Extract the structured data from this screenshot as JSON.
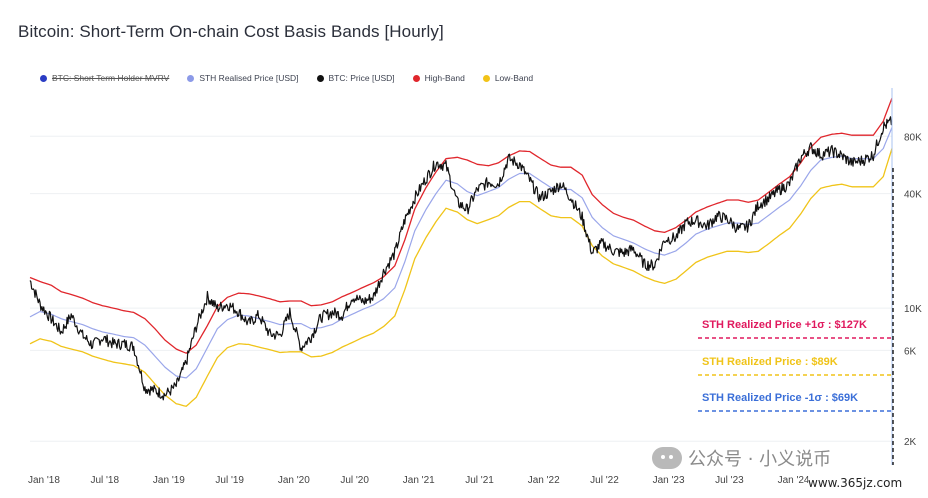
{
  "title": "Bitcoin: Short-Term On-chain Cost Basis Bands [Hourly]",
  "legend": [
    {
      "label": "BTC: Short Term Holder MVRV",
      "color": "#2a3cc4",
      "struck": true
    },
    {
      "label": "STH Realised Price [USD]",
      "color": "#8c9ae8",
      "struck": false
    },
    {
      "label": "BTC: Price [USD]",
      "color": "#111111",
      "struck": false
    },
    {
      "label": "High-Band",
      "color": "#e0262c",
      "struck": false
    },
    {
      "label": "Low-Band",
      "color": "#f2c318",
      "struck": false
    }
  ],
  "colors": {
    "price": "#111111",
    "sth": "#9aa6ea",
    "high": "#e0262c",
    "low": "#f0c419",
    "ann_high": "#e0195e",
    "ann_mid": "#f0c419",
    "ann_low": "#3b6fd8",
    "grid": "#eef0f3"
  },
  "watermark": {
    "text": "公众号 · 小义说币",
    "site": "www.365jz.com"
  },
  "chart_data": {
    "type": "line",
    "yscale": "log",
    "ylim": [
      1500,
      140000
    ],
    "xlim": [
      2018.0,
      2024.9
    ],
    "x_ticks": [
      {
        "label": "Jan '18",
        "x": 2018.0
      },
      {
        "label": "Jul '18",
        "x": 2018.5
      },
      {
        "label": "Jan '19",
        "x": 2019.0
      },
      {
        "label": "Jul '19",
        "x": 2019.5
      },
      {
        "label": "Jan '20",
        "x": 2020.0
      },
      {
        "label": "Jul '20",
        "x": 2020.5
      },
      {
        "label": "Jan '21",
        "x": 2021.0
      },
      {
        "label": "Jul '21",
        "x": 2021.5
      },
      {
        "label": "Jan '22",
        "x": 2022.0
      },
      {
        "label": "Jul '22",
        "x": 2022.5
      },
      {
        "label": "Jan '23",
        "x": 2023.0
      },
      {
        "label": "Jul '23",
        "x": 2023.5
      },
      {
        "label": "Jan '24",
        "x": 2024.0
      }
    ],
    "y_ticks": [
      {
        "label": "80K",
        "value": 80000
      },
      {
        "label": "40K",
        "value": 40000
      },
      {
        "label": "10K",
        "value": 10000
      },
      {
        "label": "6K",
        "value": 6000
      },
      {
        "label": "2K",
        "value": 2000
      }
    ],
    "x": [
      2018.0,
      2018.08,
      2018.17,
      2018.25,
      2018.33,
      2018.42,
      2018.5,
      2018.58,
      2018.67,
      2018.75,
      2018.83,
      2018.92,
      2019.0,
      2019.08,
      2019.17,
      2019.25,
      2019.33,
      2019.42,
      2019.5,
      2019.58,
      2019.67,
      2019.75,
      2019.83,
      2019.92,
      2020.0,
      2020.08,
      2020.17,
      2020.25,
      2020.33,
      2020.42,
      2020.5,
      2020.58,
      2020.67,
      2020.75,
      2020.83,
      2020.92,
      2021.0,
      2021.08,
      2021.17,
      2021.25,
      2021.33,
      2021.42,
      2021.5,
      2021.58,
      2021.67,
      2021.75,
      2021.83,
      2021.92,
      2022.0,
      2022.08,
      2022.17,
      2022.25,
      2022.33,
      2022.42,
      2022.5,
      2022.58,
      2022.67,
      2022.75,
      2022.83,
      2022.92,
      2023.0,
      2023.08,
      2023.17,
      2023.25,
      2023.33,
      2023.42,
      2023.5,
      2023.58,
      2023.67,
      2023.75,
      2023.83,
      2023.92,
      2024.0,
      2024.08,
      2024.17,
      2024.25,
      2024.33,
      2024.42,
      2024.5,
      2024.58,
      2024.67,
      2024.75,
      2024.83,
      2024.9
    ],
    "series": [
      {
        "name": "BTC: Price [USD]",
        "key": "price",
        "values": [
          14000,
          10500,
          8800,
          7500,
          9200,
          7200,
          6400,
          7000,
          6500,
          6500,
          6300,
          3800,
          3700,
          3500,
          3900,
          5200,
          8000,
          11500,
          10000,
          10500,
          9600,
          8300,
          9200,
          7300,
          7200,
          9500,
          6200,
          7100,
          9000,
          9500,
          9200,
          11500,
          10800,
          11500,
          15500,
          19500,
          29000,
          38000,
          48000,
          58000,
          56000,
          36000,
          33000,
          42000,
          46000,
          45000,
          61000,
          57000,
          47000,
          38000,
          41000,
          45000,
          38000,
          30000,
          19500,
          22000,
          20000,
          19500,
          20500,
          17000,
          16800,
          23000,
          23500,
          28000,
          29000,
          27000,
          30500,
          29500,
          26000,
          27000,
          35000,
          38000,
          42000,
          45000,
          62000,
          70000,
          64000,
          67000,
          63000,
          58000,
          60000,
          64000,
          90000,
          96000
        ]
      },
      {
        "name": "STH Realised Price [USD]",
        "key": "sth",
        "values": [
          9000,
          9600,
          9300,
          8800,
          8500,
          8200,
          7800,
          7500,
          7300,
          7100,
          7000,
          6400,
          5600,
          4900,
          4400,
          4300,
          4800,
          6200,
          7800,
          8700,
          9200,
          9100,
          8800,
          8500,
          8200,
          8300,
          8300,
          7800,
          7900,
          8200,
          8800,
          9300,
          9900,
          10400,
          11200,
          12800,
          17500,
          25500,
          33000,
          40000,
          47000,
          45000,
          41000,
          39000,
          41000,
          43000,
          47500,
          51000,
          51000,
          47000,
          43000,
          42000,
          42000,
          38000,
          30000,
          26500,
          24000,
          23000,
          22000,
          20500,
          19500,
          19000,
          20000,
          22000,
          24500,
          26000,
          27000,
          28000,
          28000,
          27500,
          28000,
          31000,
          34000,
          37000,
          44000,
          53000,
          60000,
          62000,
          63000,
          61000,
          61000,
          61000,
          69000,
          89000
        ]
      },
      {
        "name": "High-Band",
        "key": "high",
        "values": [
          14500,
          13800,
          13200,
          12200,
          11800,
          11300,
          10700,
          10300,
          10000,
          9700,
          9500,
          8800,
          7800,
          6800,
          6100,
          5800,
          6400,
          8100,
          10200,
          11400,
          12000,
          11900,
          11600,
          11200,
          10800,
          10900,
          10900,
          10300,
          10400,
          10800,
          11500,
          12100,
          12900,
          13600,
          14600,
          16700,
          22800,
          33200,
          43000,
          52000,
          61000,
          62000,
          60000,
          57000,
          56000,
          58000,
          63000,
          67000,
          66500,
          61500,
          56500,
          55000,
          55000,
          50000,
          39500,
          35000,
          31500,
          30000,
          29000,
          27000,
          25500,
          25000,
          26500,
          29000,
          32000,
          34000,
          35500,
          37000,
          37000,
          36000,
          37000,
          41000,
          45000,
          49000,
          58000,
          70000,
          79000,
          82000,
          83000,
          81000,
          81000,
          81000,
          96000,
          127000
        ]
      },
      {
        "name": "Low-Band",
        "key": "low",
        "values": [
          6500,
          6900,
          6700,
          6300,
          6100,
          5900,
          5600,
          5400,
          5200,
          5100,
          5000,
          4600,
          4000,
          3500,
          3150,
          3050,
          3400,
          4400,
          5500,
          6200,
          6500,
          6450,
          6250,
          6050,
          5850,
          5900,
          5900,
          5550,
          5600,
          5850,
          6250,
          6600,
          7050,
          7400,
          8000,
          9100,
          12500,
          18200,
          23500,
          28500,
          33500,
          32000,
          29200,
          27800,
          29200,
          30600,
          33800,
          36300,
          36300,
          33400,
          30600,
          29900,
          29900,
          27000,
          21300,
          18800,
          17100,
          16400,
          15700,
          14600,
          13900,
          13500,
          14200,
          15700,
          17400,
          18500,
          19200,
          19900,
          19900,
          19600,
          19900,
          22000,
          24200,
          26300,
          31300,
          37700,
          42700,
          44100,
          44800,
          43400,
          43400,
          43400,
          49100,
          69000
        ]
      }
    ],
    "annotations": [
      {
        "label": "STH Realized Price +1σ : $127K",
        "key": "ann_high"
      },
      {
        "label": "STH Realized Price  : $89K",
        "key": "ann_mid"
      },
      {
        "label": "STH Realized Price -1σ : $69K",
        "key": "ann_low"
      }
    ]
  }
}
